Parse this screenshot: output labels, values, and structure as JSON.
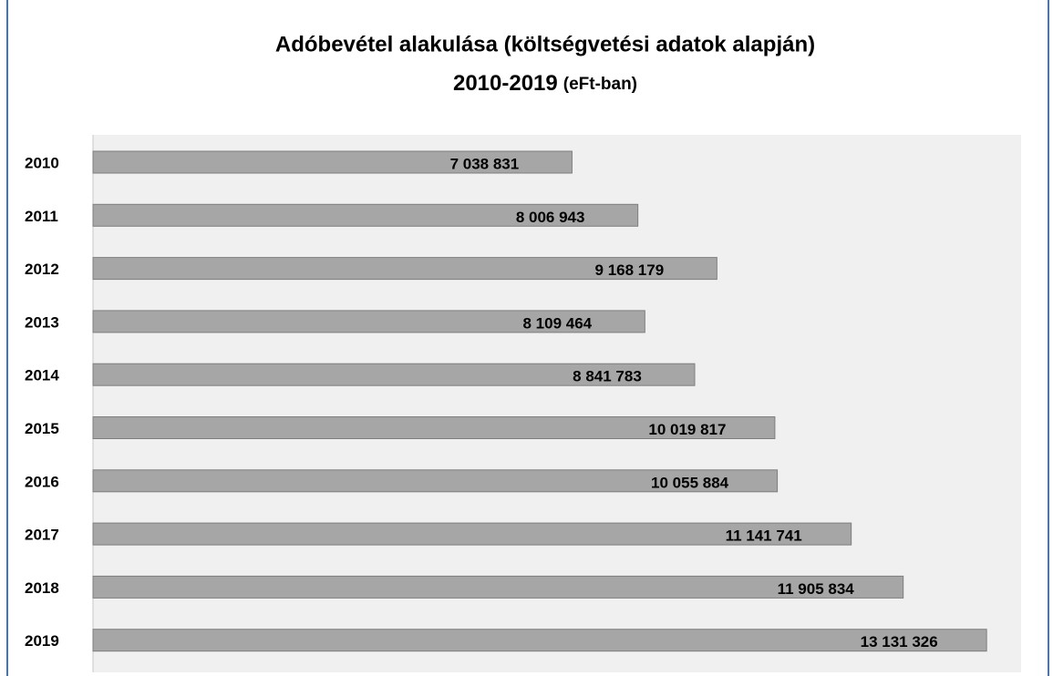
{
  "chart_data": {
    "type": "bar",
    "orientation": "horizontal",
    "title": "Adóbevétel alakulása (költségvetési adatok alapján)",
    "subtitle": "2010-2019",
    "unit": "(eFt-ban)",
    "categories": [
      "2010",
      "2011",
      "2012",
      "2013",
      "2014",
      "2015",
      "2016",
      "2017",
      "2018",
      "2019"
    ],
    "values": [
      7038831,
      8006943,
      9168179,
      8109464,
      8841783,
      10019817,
      10055884,
      11141741,
      11905834,
      13131326
    ],
    "value_labels": [
      "7 038 831",
      "8 006 943",
      "9 168 179",
      "8 109 464",
      "8 841 783",
      "10 019 817",
      "10 055 884",
      "11 141 741",
      "11 905 834",
      "13 131 326"
    ],
    "color": "#a6a6a6",
    "xlim": [
      0,
      14000000
    ]
  }
}
